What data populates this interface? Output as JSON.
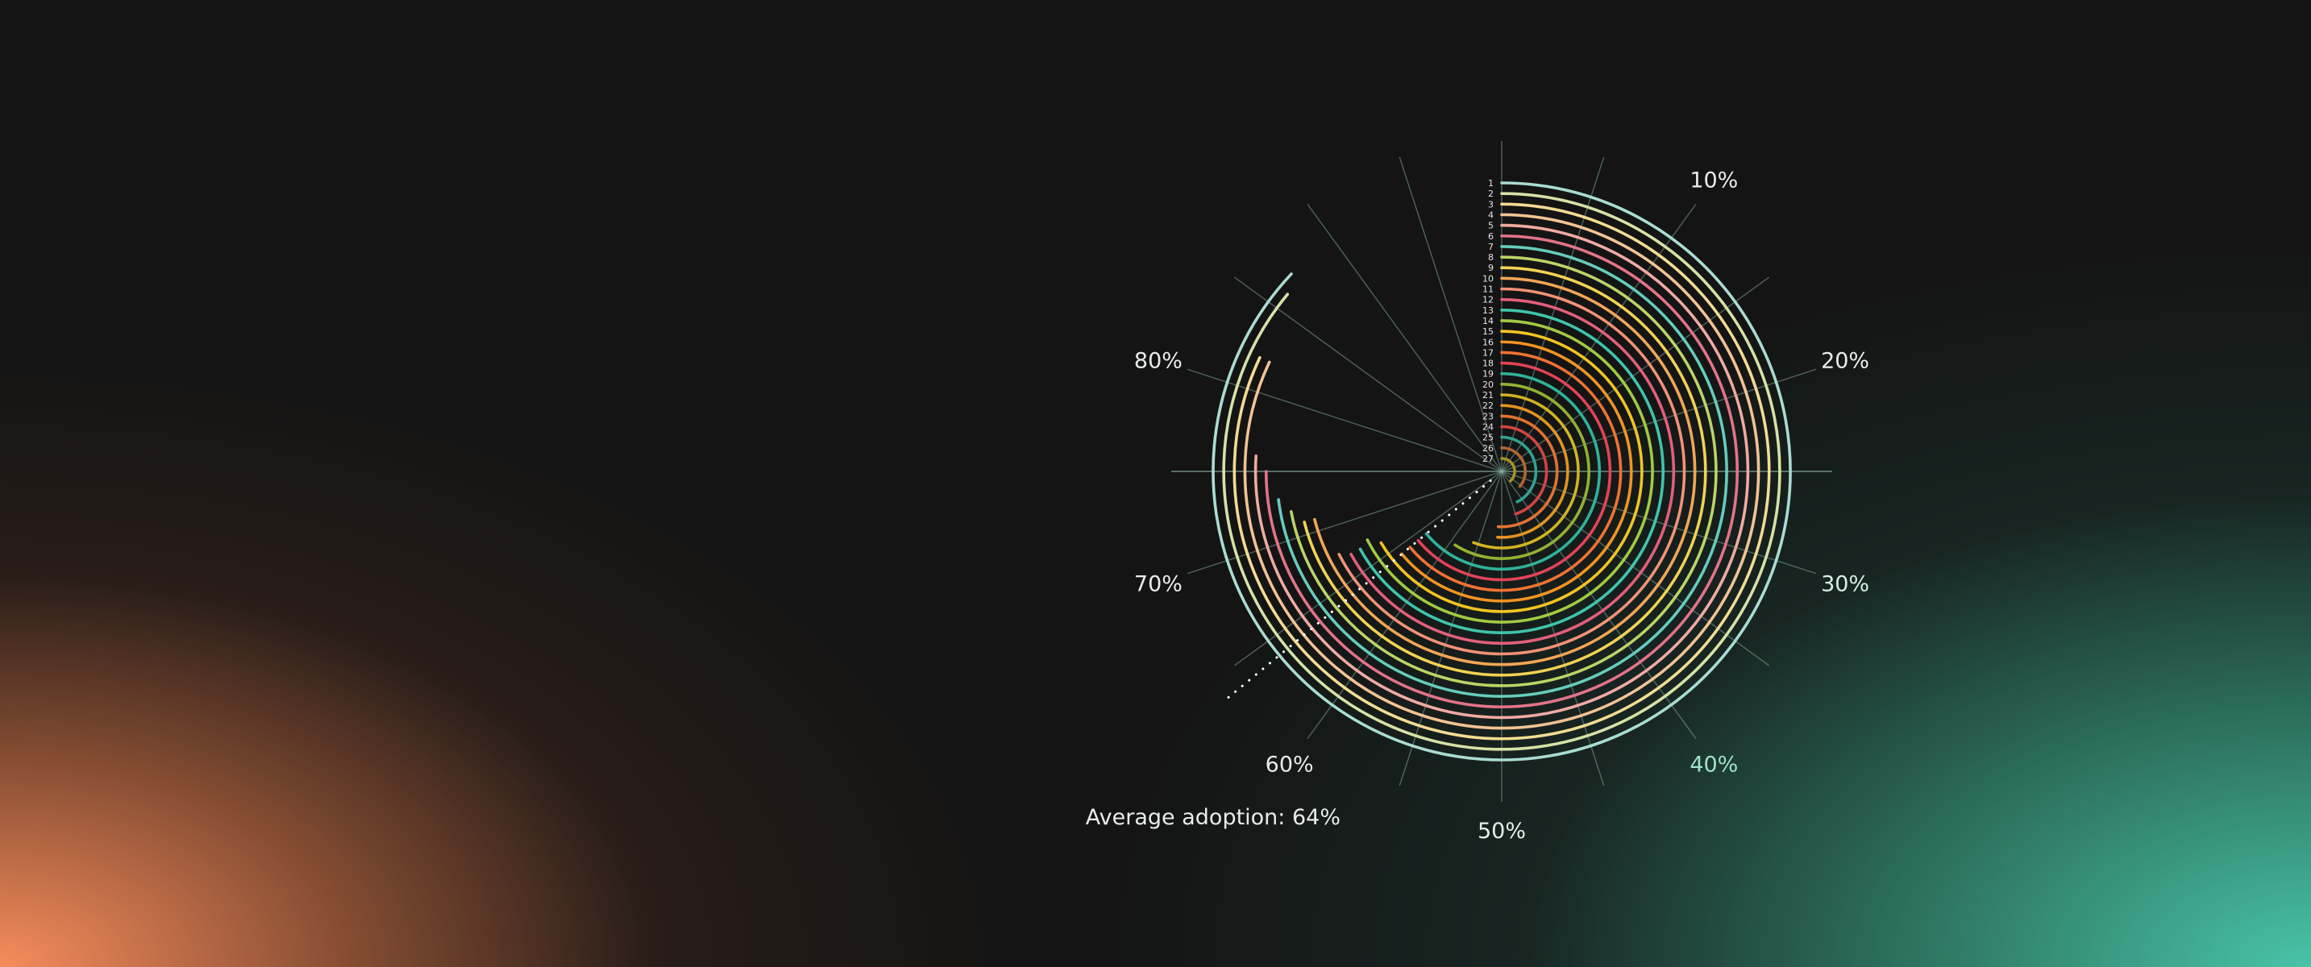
{
  "chart_data": {
    "type": "radial-bar",
    "title": "",
    "axis": {
      "min": 0,
      "max": 100,
      "unit": "%",
      "tick_labels": [
        "10%",
        "20%",
        "30%",
        "40%",
        "50%",
        "60%",
        "70%",
        "80%"
      ],
      "spoke_step": 5
    },
    "rings": [
      {
        "label": "1",
        "value": 87,
        "color": "#a9dcd2"
      },
      {
        "label": "2",
        "value": 86,
        "color": "#d6e2a6"
      },
      {
        "label": "3",
        "value": 82,
        "color": "#f2dc92"
      },
      {
        "label": "4",
        "value": 82,
        "color": "#f2c394"
      },
      {
        "label": "5",
        "value": 76,
        "color": "#f0aaa2"
      },
      {
        "label": "6",
        "value": 75,
        "color": "#e27488"
      },
      {
        "label": "7",
        "value": 73,
        "color": "#66ccbc"
      },
      {
        "label": "8",
        "value": 72,
        "color": "#bcd466"
      },
      {
        "label": "9",
        "value": 71,
        "color": "#f2d254"
      },
      {
        "label": "10",
        "value": 71,
        "color": "#f2a656"
      },
      {
        "label": "11",
        "value": 67.5,
        "color": "#f29276"
      },
      {
        "label": "12",
        "value": 67,
        "color": "#e2607a"
      },
      {
        "label": "13",
        "value": 67,
        "color": "#40c4ac"
      },
      {
        "label": "14",
        "value": 67.5,
        "color": "#a2ca42"
      },
      {
        "label": "15",
        "value": 66.5,
        "color": "#f2c422"
      },
      {
        "label": "16",
        "value": 64,
        "color": "#f29422"
      },
      {
        "label": "17",
        "value": 64,
        "color": "#f07232"
      },
      {
        "label": "18",
        "value": 64,
        "color": "#e24456"
      },
      {
        "label": "19",
        "value": 64,
        "color": "#30b29a"
      },
      {
        "label": "20",
        "value": 59,
        "color": "#92b232"
      },
      {
        "label": "21",
        "value": 56,
        "color": "#d2b422"
      },
      {
        "label": "22",
        "value": 51,
        "color": "#e29422"
      },
      {
        "label": "23",
        "value": 51,
        "color": "#e27232"
      },
      {
        "label": "24",
        "value": 45,
        "color": "#d24444"
      },
      {
        "label": "25",
        "value": 42.5,
        "color": "#30a292"
      },
      {
        "label": "26",
        "value": 36,
        "color": "#b26632"
      },
      {
        "label": "27",
        "value": 38,
        "color": "#a49424"
      }
    ],
    "average": {
      "value": 64,
      "label": "Average adoption: 64%"
    },
    "highlight_label_color": "#9fe2cc",
    "grid": true
  }
}
